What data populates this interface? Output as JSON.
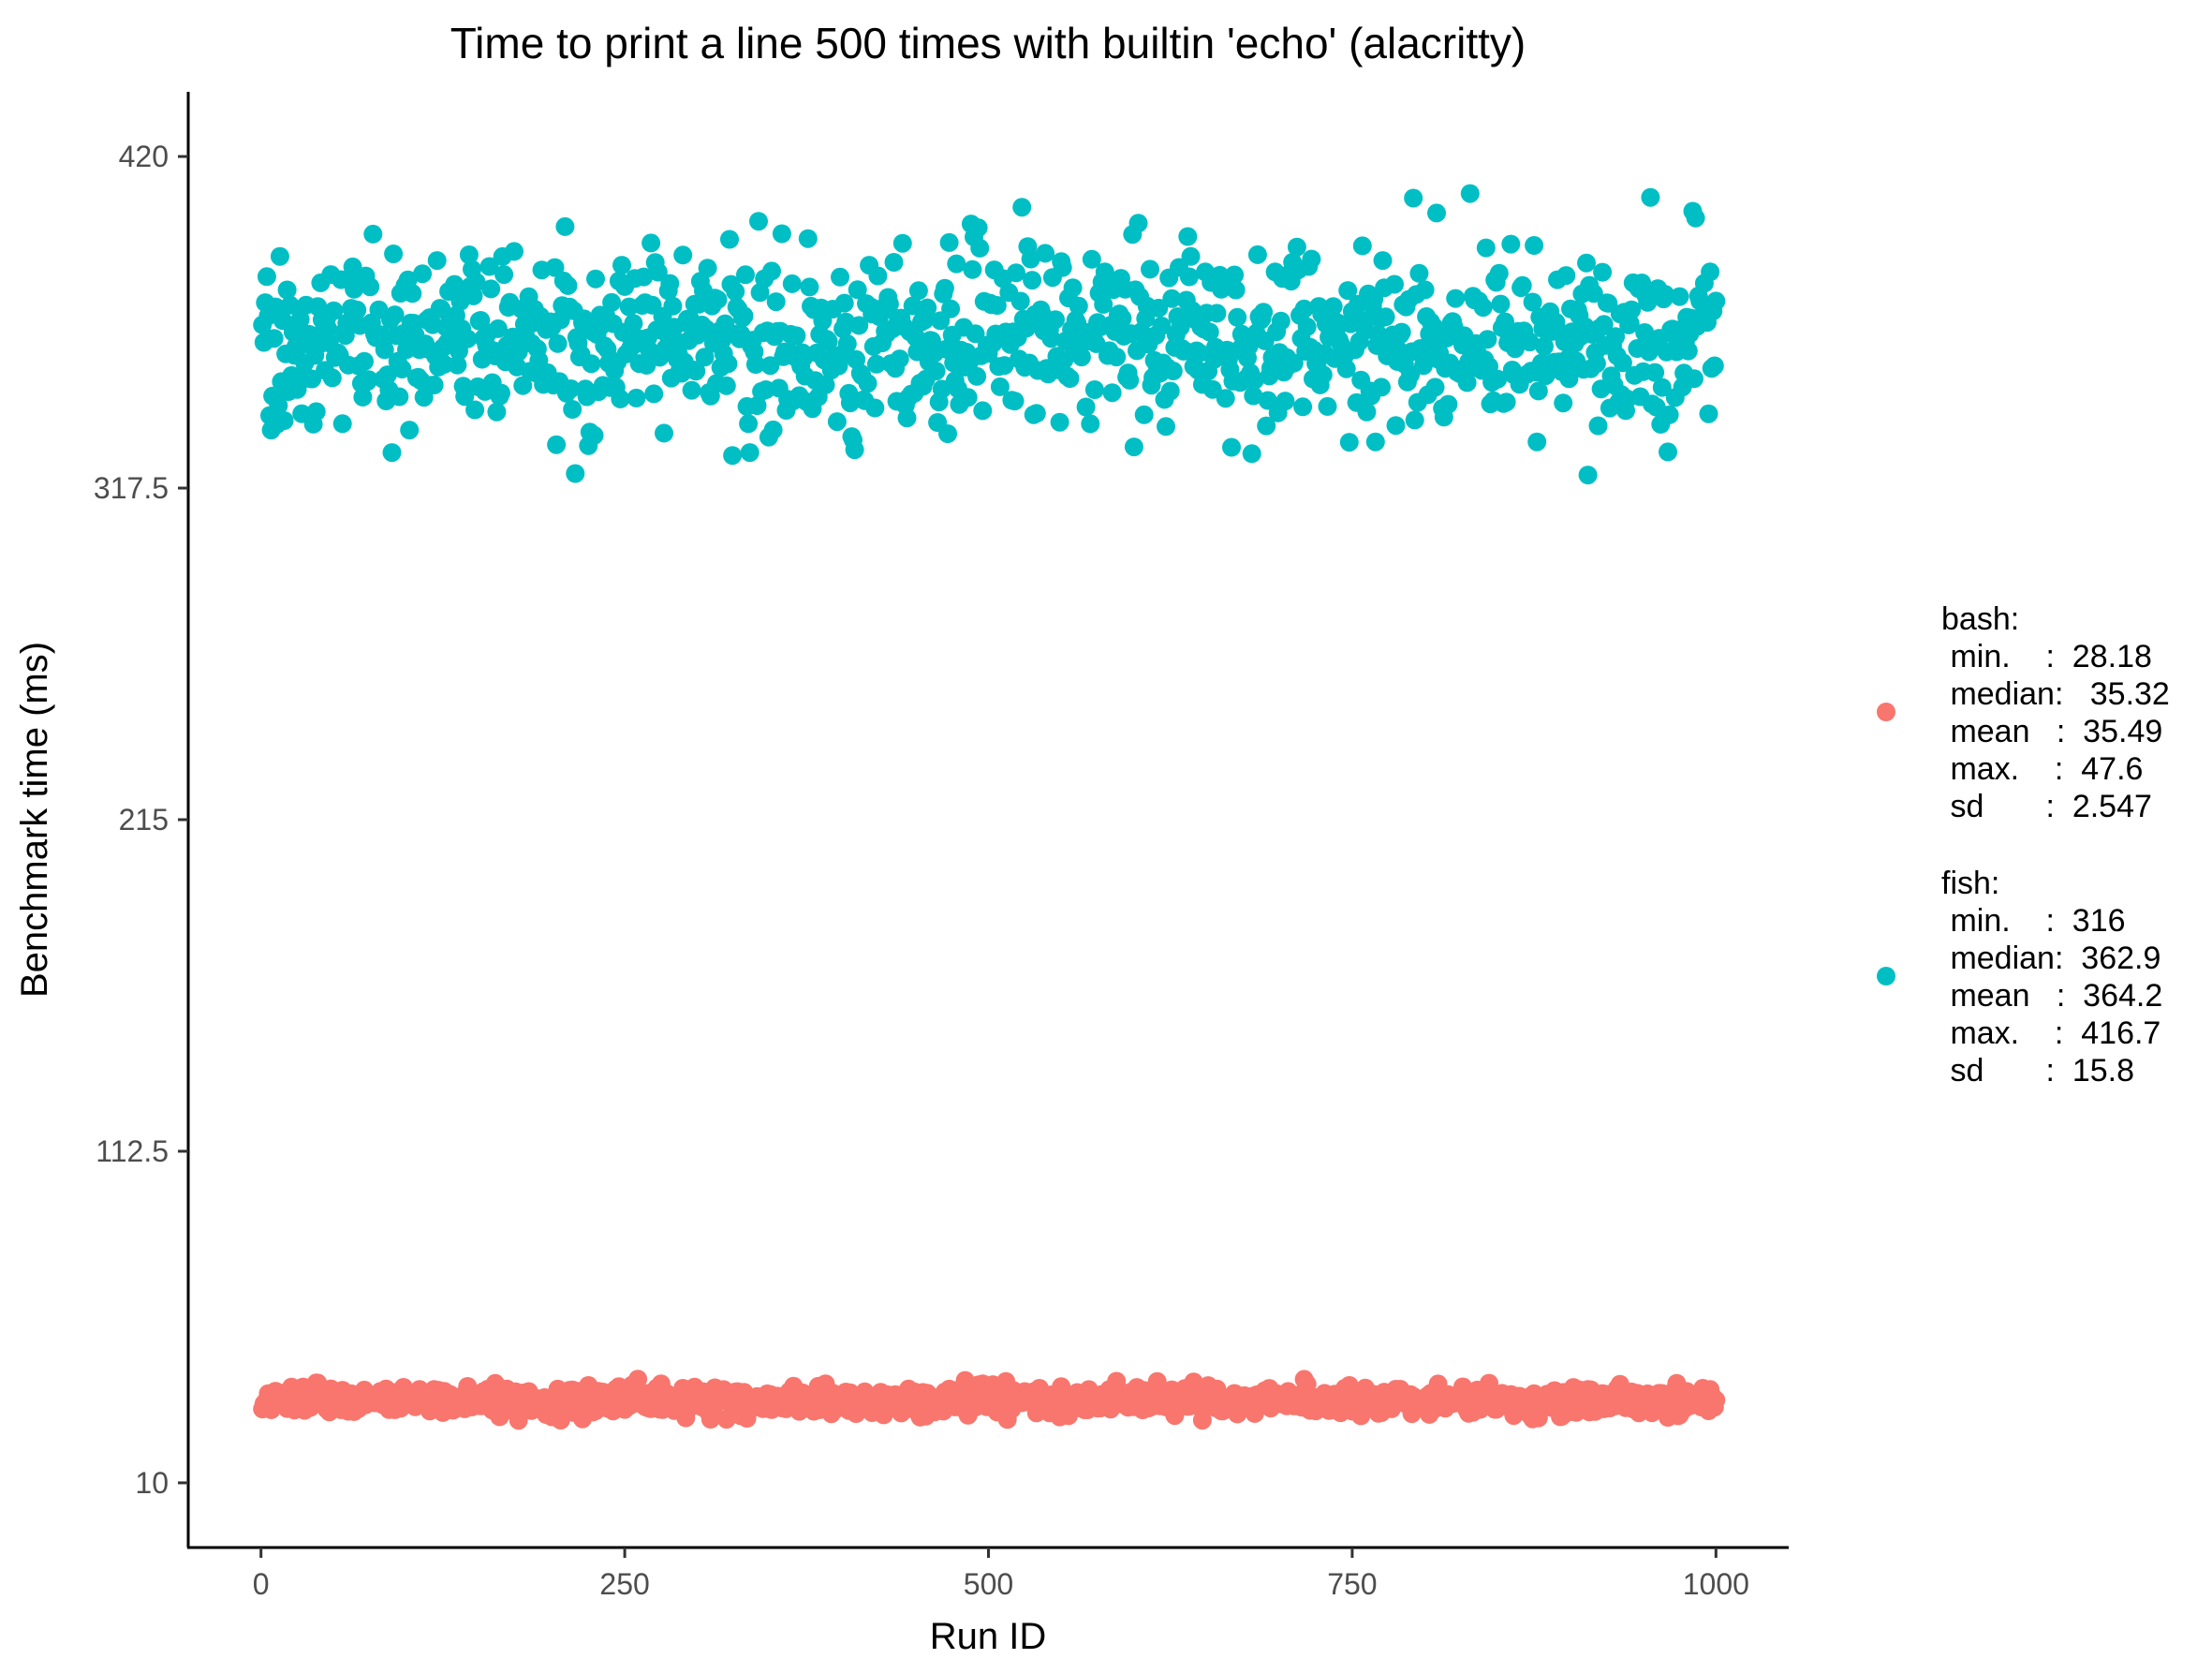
{
  "chart_data": {
    "type": "scatter",
    "title": "Time to print a line 500 times with builtin 'echo' (alacritty)",
    "xlabel": "Run ID",
    "ylabel": "Benchmark time (ms)",
    "xlim": [
      -50,
      1050
    ],
    "ylim": [
      -10,
      440
    ],
    "x_ticks": [
      0,
      250,
      500,
      750,
      1000
    ],
    "x_tick_labels": [
      "0",
      "250",
      "500",
      "750",
      "1000"
    ],
    "y_ticks": [
      10,
      112.5,
      215,
      317.5,
      420
    ],
    "y_tick_labels": [
      "10",
      "112.5",
      "215",
      "317.5",
      "420"
    ],
    "grid": false,
    "legend_position": "right",
    "n_points_per_series": 1000,
    "series": [
      {
        "name": "bash",
        "color": "#F8766D",
        "stats": {
          "min": 28.18,
          "median": 35.32,
          "mean": 35.49,
          "max": 47.6,
          "sd": 2.547
        },
        "legend_lines": [
          "bash:",
          " min.    :  28.18",
          " median:   35.32",
          " mean   :  35.49",
          " max.    :  47.6",
          " sd       :  2.547"
        ]
      },
      {
        "name": "fish",
        "color": "#00BFC4",
        "stats": {
          "min": 316,
          "median": 362.9,
          "mean": 364.2,
          "max": 416.7,
          "sd": 15.8
        },
        "legend_lines": [
          "fish:",
          " min.    :  316",
          " median:  362.9",
          " mean   :  364.2",
          " max.    :  416.7",
          " sd       :  15.8"
        ]
      }
    ]
  }
}
